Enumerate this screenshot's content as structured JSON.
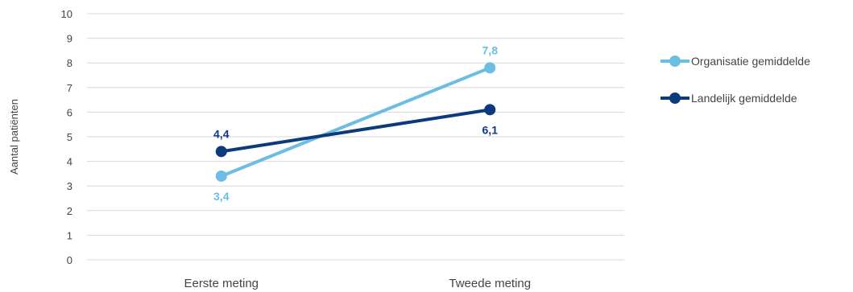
{
  "chart_data": {
    "type": "line",
    "ylabel": "Aantal patiënten",
    "xlabel": "",
    "ylim": [
      0,
      10
    ],
    "yticks": [
      "0",
      "1",
      "2",
      "3",
      "4",
      "5",
      "6",
      "7",
      "8",
      "9",
      "10"
    ],
    "grid": true,
    "legend_position": "right",
    "categories": [
      "Eerste meting",
      "Tweede meting"
    ],
    "series": [
      {
        "name": "Organisatie gemiddelde",
        "color": "#6cbde3",
        "values": [
          3.4,
          7.8
        ],
        "labels": [
          "3,4",
          "7,8"
        ],
        "label_positions": [
          "below",
          "above"
        ]
      },
      {
        "name": "Landelijk gemiddelde",
        "color": "#0d3a7c",
        "values": [
          4.4,
          6.1
        ],
        "labels": [
          "4,4",
          "6,1"
        ],
        "label_positions": [
          "above",
          "below"
        ]
      }
    ]
  }
}
